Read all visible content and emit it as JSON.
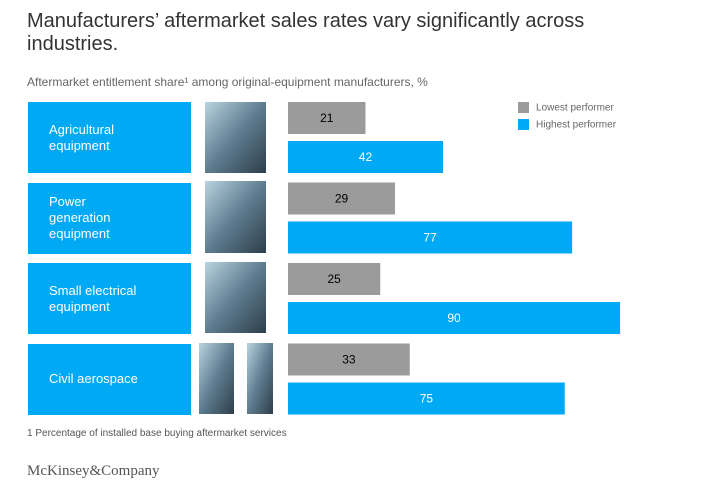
{
  "chart_data": {
    "type": "bar",
    "title": "Manufacturers’ aftermarket sales rates vary significantly across industries.",
    "subtitle": "Aftermarket entitlement share¹ among original-equipment manufacturers, %",
    "categories": [
      "Agricultural equipment",
      "Power generation equipment",
      "Small electrical equipment",
      "Civil aerospace"
    ],
    "series": [
      {
        "name": "Lowest performer",
        "color": "#9b9b9b",
        "values": [
          21,
          29,
          25,
          33
        ]
      },
      {
        "name": "Highest performer",
        "color": "#00a9f4",
        "values": [
          42,
          77,
          90,
          75
        ]
      }
    ],
    "xlim": [
      0,
      100
    ],
    "legend": "top-right",
    "footnote": "1 Percentage of installed base buying aftermarket services",
    "source": "McKinsey&Company"
  }
}
